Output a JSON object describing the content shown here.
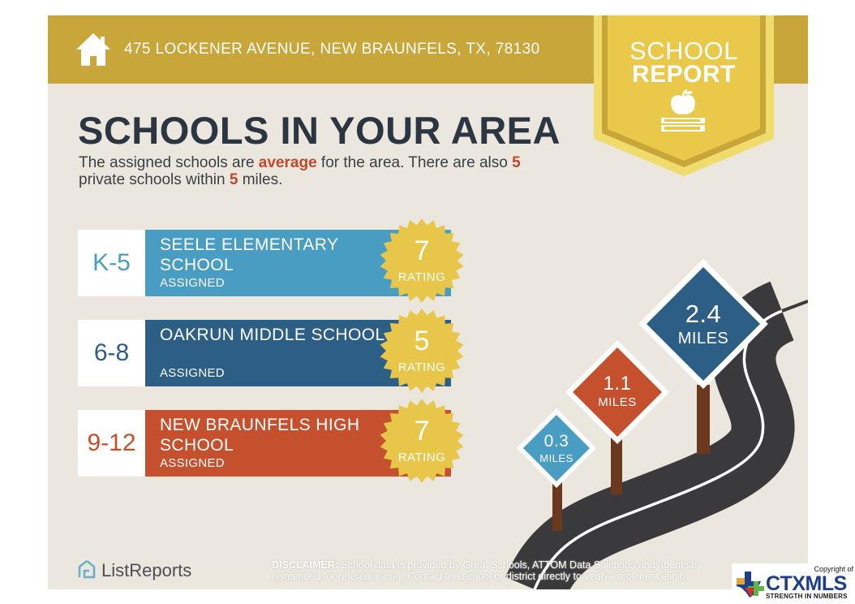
{
  "header": {
    "address": "475 LOCKENER AVENUE, NEW BRAUNFELS, TX, 78130",
    "home_icon": "home-icon"
  },
  "badge": {
    "line1": "SCHOOL",
    "line2": "REPORT",
    "icon": "apple-on-books-icon"
  },
  "main": {
    "title": "SCHOOLS IN YOUR AREA",
    "subtitle": {
      "part1": "The assigned schools are ",
      "quality": "average",
      "part2": " for the area. There are also ",
      "private_count": "5",
      "part3": " private schools within ",
      "radius": "5",
      "part4": " miles."
    }
  },
  "schools": [
    {
      "grades": "K-5",
      "name": "SEELE ELEMENTARY SCHOOL",
      "status": "ASSIGNED",
      "rating": "7",
      "rating_label": "RATING",
      "color": "#4a9dc2",
      "grade_color": "#4a9dc2"
    },
    {
      "grades": "6-8",
      "name": "OAKRUN MIDDLE SCHOOL",
      "status": "ASSIGNED",
      "rating": "5",
      "rating_label": "RATING",
      "color": "#2d5f86",
      "grade_color": "#2d5f86"
    },
    {
      "grades": "9-12",
      "name": "NEW BRAUNFELS HIGH SCHOOL",
      "status": "ASSIGNED",
      "rating": "7",
      "rating_label": "RATING",
      "color": "#c4502e",
      "grade_color": "#c4502e"
    }
  ],
  "distance_signs": [
    {
      "value": "0.3",
      "unit": "MILES",
      "color": "#4a9dc2"
    },
    {
      "value": "1.1",
      "unit": "MILES",
      "color": "#c4502e"
    },
    {
      "value": "2.4",
      "unit": "MILES",
      "color": "#2d5f86"
    }
  ],
  "footer": {
    "brand": "ListReports",
    "disclaimer_label": "DISCLAIMER:",
    "disclaimer_line1": " School data is provided by Great Schools, ATTOM Data Solutions and agent se",
    "disclaimer_line2": "is intended for reference only. Contact the school or district directly to verify enrollment eligib"
  },
  "watermark": {
    "copyright": "Copyright of",
    "name": "CTXMLS",
    "tagline": "STRENGTH IN NUMBERS"
  },
  "colors": {
    "gold": "#c9a63a",
    "seal": "#e8c64a",
    "background": "#ebe7de",
    "title": "#2c3642",
    "accent": "#c2482b"
  }
}
